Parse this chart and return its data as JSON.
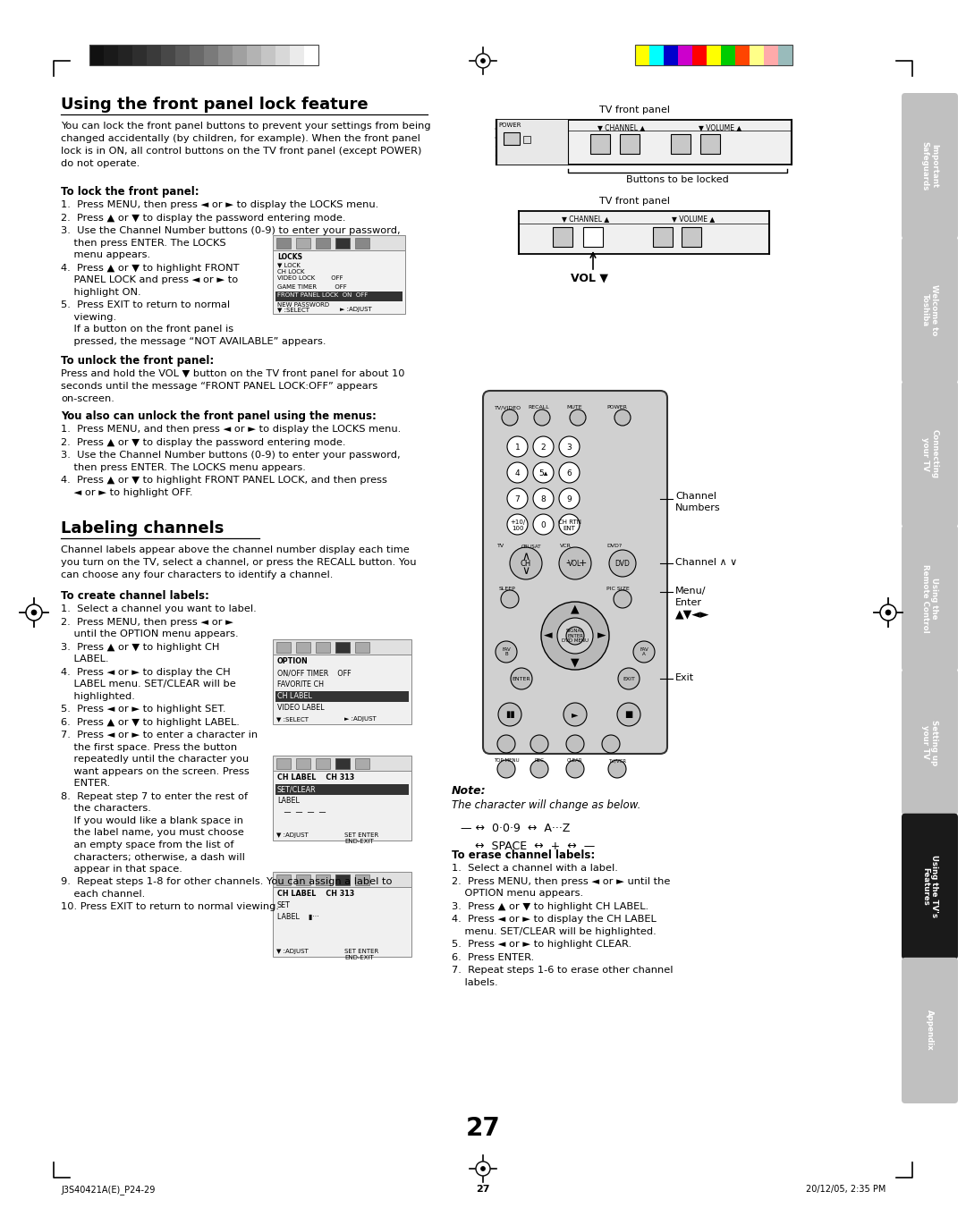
{
  "page_width": 10.8,
  "page_height": 13.7,
  "bg_color": "#ffffff",
  "page_number": "27",
  "footer_left": "J3S40421A(E)_P24-29",
  "footer_center": "27",
  "footer_right": "20/12/05, 2:35 PM",
  "section1_title": "Using the front panel lock feature",
  "section2_title": "Labeling channels",
  "tab_labels": [
    "Important\nSafeguards",
    "Welcome to\nToshiba",
    "Connecting\nyour TV",
    "Using the\nRemote Control",
    "Setting up\nyour TV",
    "Using the TV's\nFeatures",
    "Appendix"
  ],
  "tab_active_idx": 5,
  "bar_colors_left": [
    "#111111",
    "#1a1a1a",
    "#232323",
    "#2e2e2e",
    "#3a3a3a",
    "#484848",
    "#585858",
    "#696969",
    "#7a7a7a",
    "#8e8e8e",
    "#a0a0a0",
    "#b3b3b3",
    "#c5c5c5",
    "#d8d8d8",
    "#ebebeb",
    "#ffffff"
  ],
  "bar_colors_right": [
    "#ffff00",
    "#00ffff",
    "#0000cc",
    "#cc00cc",
    "#ff0000",
    "#ffff00",
    "#00cc00",
    "#ff4400",
    "#ffff88",
    "#ffaaaa",
    "#99bbbb"
  ]
}
